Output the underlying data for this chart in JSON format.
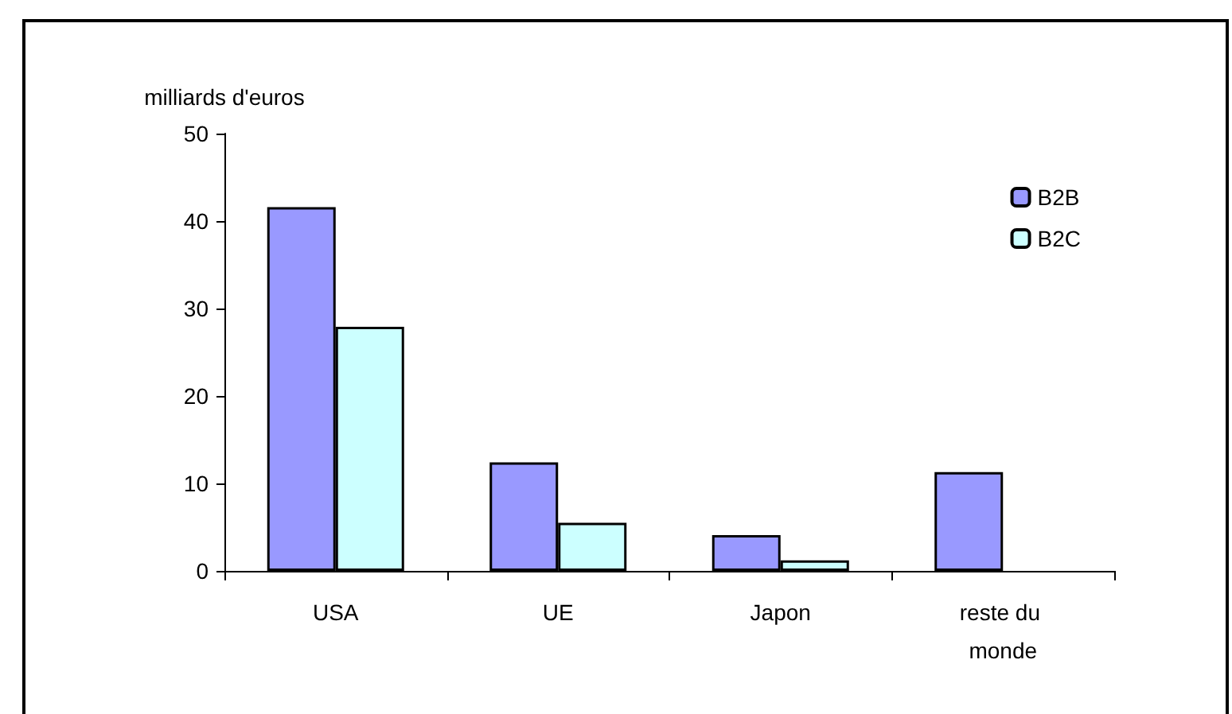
{
  "chart_data": {
    "type": "bar",
    "ylabel": "milliards d'euros",
    "categories": [
      "USA",
      "UE",
      "Japon",
      "reste du monde"
    ],
    "series": [
      {
        "name": "B2B",
        "color": "#9999ff",
        "values": [
          41.6,
          12.4,
          4.1,
          11.3
        ]
      },
      {
        "name": "B2C",
        "color": "#ccffff",
        "values": [
          27.9,
          5.5,
          1.2,
          null
        ]
      }
    ],
    "ylim": [
      0,
      50
    ],
    "yticks": [
      0,
      10,
      20,
      30,
      40,
      50
    ],
    "grid": false,
    "legend": "top right"
  }
}
